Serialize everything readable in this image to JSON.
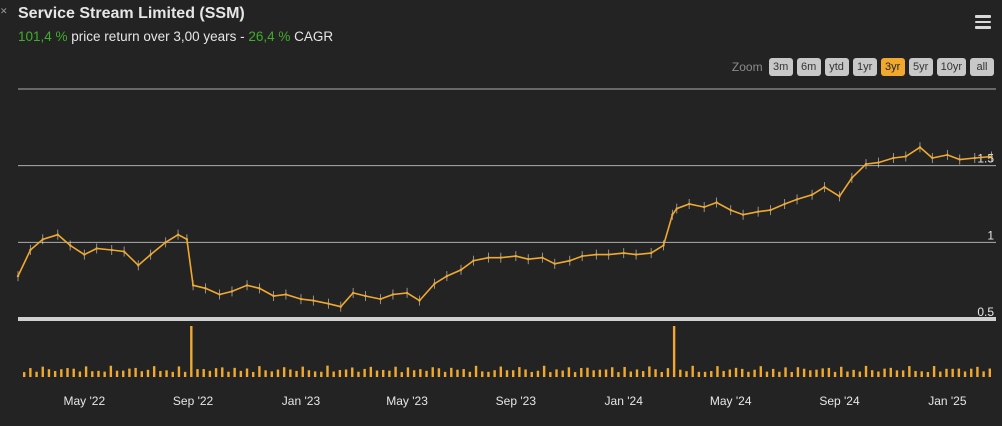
{
  "header": {
    "title": "Service Stream Limited (SSM)",
    "price_return_value": "101,4 %",
    "price_return_text": " price return over 3,00 years - ",
    "cagr_value": "26,4 %",
    "cagr_text": " CAGR"
  },
  "zoom": {
    "label": "Zoom",
    "buttons": [
      "3m",
      "6m",
      "ytd",
      "1yr",
      "3yr",
      "5yr",
      "10yr",
      "all"
    ],
    "active": "3yr"
  },
  "colors": {
    "background": "#232323",
    "price_line": "#f0a92e",
    "volume_bar": "#f0a92e",
    "grid": "#bdbdbd",
    "positive": "#3fae29"
  },
  "chart_data": {
    "type": "line",
    "x_tick_labels": [
      "May '22",
      "Sep '22",
      "Jan '23",
      "May '23",
      "Sep '23",
      "Jan '24",
      "May '24",
      "Sep '24",
      "Jan '25"
    ],
    "x_tick_dates": [
      "2022-05-01",
      "2022-09-01",
      "2023-01-01",
      "2023-05-01",
      "2023-09-01",
      "2024-01-01",
      "2024-05-01",
      "2024-09-01",
      "2025-01-01"
    ],
    "y_tick_labels": [
      "0.5",
      "1",
      "1.5"
    ],
    "y_ticks": [
      0.5,
      1.0,
      1.5
    ],
    "ylim": [
      0.5,
      2.0
    ],
    "xlim": [
      "2022-02-15",
      "2025-02-25"
    ],
    "grid": true,
    "price_series": {
      "dates": [
        "2022-02-15",
        "2022-03-01",
        "2022-03-15",
        "2022-04-01",
        "2022-04-15",
        "2022-05-01",
        "2022-05-15",
        "2022-06-01",
        "2022-06-15",
        "2022-07-01",
        "2022-07-15",
        "2022-08-01",
        "2022-08-15",
        "2022-08-25",
        "2022-09-01",
        "2022-09-15",
        "2022-10-01",
        "2022-10-15",
        "2022-11-01",
        "2022-11-15",
        "2022-12-01",
        "2022-12-15",
        "2023-01-01",
        "2023-01-15",
        "2023-02-01",
        "2023-02-15",
        "2023-03-01",
        "2023-03-15",
        "2023-04-01",
        "2023-04-15",
        "2023-05-01",
        "2023-05-15",
        "2023-06-01",
        "2023-06-15",
        "2023-07-01",
        "2023-07-15",
        "2023-08-01",
        "2023-08-15",
        "2023-09-01",
        "2023-09-15",
        "2023-10-01",
        "2023-10-15",
        "2023-11-01",
        "2023-11-15",
        "2023-12-01",
        "2023-12-15",
        "2024-01-01",
        "2024-01-15",
        "2024-02-01",
        "2024-02-15",
        "2024-02-25",
        "2024-03-01",
        "2024-03-15",
        "2024-04-01",
        "2024-04-15",
        "2024-05-01",
        "2024-05-15",
        "2024-06-01",
        "2024-06-15",
        "2024-07-01",
        "2024-07-15",
        "2024-08-01",
        "2024-08-15",
        "2024-09-01",
        "2024-09-15",
        "2024-10-01",
        "2024-10-15",
        "2024-11-01",
        "2024-11-15",
        "2024-12-01",
        "2024-12-15",
        "2025-01-01",
        "2025-01-15",
        "2025-02-01",
        "2025-02-20"
      ],
      "values": [
        0.78,
        0.95,
        1.02,
        1.05,
        0.98,
        0.92,
        0.96,
        0.95,
        0.94,
        0.85,
        0.92,
        1.0,
        1.05,
        1.02,
        0.72,
        0.7,
        0.66,
        0.68,
        0.72,
        0.7,
        0.65,
        0.66,
        0.63,
        0.62,
        0.6,
        0.58,
        0.67,
        0.65,
        0.63,
        0.66,
        0.67,
        0.62,
        0.73,
        0.78,
        0.82,
        0.88,
        0.9,
        0.9,
        0.91,
        0.89,
        0.9,
        0.86,
        0.88,
        0.91,
        0.92,
        0.92,
        0.93,
        0.92,
        0.93,
        0.98,
        1.18,
        1.22,
        1.25,
        1.23,
        1.26,
        1.21,
        1.18,
        1.2,
        1.21,
        1.25,
        1.28,
        1.31,
        1.36,
        1.3,
        1.42,
        1.51,
        1.52,
        1.55,
        1.56,
        1.62,
        1.55,
        1.57,
        1.54,
        1.55,
        1.56
      ]
    },
    "volume_series": {
      "spikes": [
        {
          "date": "2022-08-28",
          "relative": 1.0
        },
        {
          "date": "2024-02-25",
          "relative": 1.0
        }
      ],
      "baseline_relative": 0.16
    }
  }
}
